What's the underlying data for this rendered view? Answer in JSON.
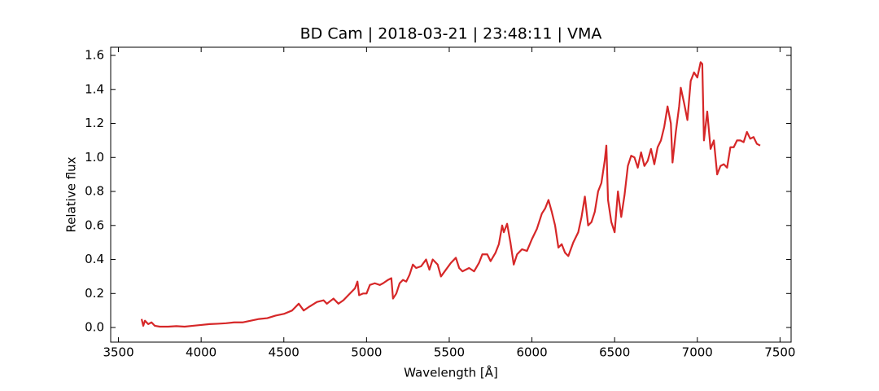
{
  "chart_data": {
    "type": "line",
    "title": "BD Cam | 2018-03-21 | 23:48:11 | VMA",
    "xlabel": "Wavelength [Å]",
    "ylabel": "Relative flux",
    "xlim": [
      3453,
      7567
    ],
    "ylim": [
      -0.086,
      1.648
    ],
    "xticks": [
      3500,
      4000,
      4500,
      5000,
      5500,
      6000,
      6500,
      7000,
      7500
    ],
    "yticks": [
      {
        "value": 0,
        "label": "0.0"
      },
      0.2,
      0.4,
      0.6,
      0.8,
      {
        "value": 1,
        "label": "1.0"
      },
      1.2,
      1.4,
      1.6
    ],
    "series": [
      {
        "color": "#d62728",
        "x": [
          3640,
          3650,
          3660,
          3680,
          3700,
          3720,
          3750,
          3800,
          3850,
          3900,
          3950,
          4000,
          4050,
          4100,
          4150,
          4200,
          4250,
          4300,
          4350,
          4400,
          4450,
          4500,
          4550,
          4590,
          4620,
          4650,
          4700,
          4740,
          4760,
          4800,
          4830,
          4860,
          4900,
          4930,
          4945,
          4955,
          4980,
          5000,
          5020,
          5050,
          5080,
          5100,
          5130,
          5150,
          5160,
          5180,
          5200,
          5220,
          5240,
          5260,
          5280,
          5300,
          5330,
          5360,
          5380,
          5400,
          5430,
          5450,
          5480,
          5510,
          5540,
          5560,
          5580,
          5620,
          5650,
          5680,
          5700,
          5730,
          5750,
          5780,
          5800,
          5820,
          5830,
          5850,
          5870,
          5890,
          5910,
          5940,
          5970,
          6000,
          6030,
          6060,
          6080,
          6100,
          6120,
          6140,
          6160,
          6180,
          6200,
          6220,
          6250,
          6280,
          6300,
          6320,
          6340,
          6360,
          6380,
          6400,
          6420,
          6440,
          6450,
          6460,
          6480,
          6500,
          6520,
          6540,
          6560,
          6580,
          6600,
          6620,
          6640,
          6660,
          6680,
          6700,
          6720,
          6740,
          6760,
          6780,
          6800,
          6820,
          6840,
          6850,
          6870,
          6890,
          6900,
          6920,
          6940,
          6960,
          6980,
          7000,
          7020,
          7030,
          7040,
          7060,
          7080,
          7100,
          7120,
          7140,
          7160,
          7180,
          7200,
          7220,
          7240,
          7260,
          7280,
          7300,
          7320,
          7340,
          7360,
          7380
        ],
        "values": [
          0.05,
          0.01,
          0.04,
          0.02,
          0.03,
          0.01,
          0.005,
          0.005,
          0.008,
          0.005,
          0.01,
          0.015,
          0.02,
          0.022,
          0.025,
          0.03,
          0.03,
          0.04,
          0.05,
          0.055,
          0.07,
          0.08,
          0.1,
          0.14,
          0.1,
          0.12,
          0.15,
          0.16,
          0.14,
          0.17,
          0.14,
          0.16,
          0.2,
          0.23,
          0.27,
          0.19,
          0.2,
          0.2,
          0.25,
          0.26,
          0.25,
          0.26,
          0.28,
          0.29,
          0.17,
          0.2,
          0.26,
          0.28,
          0.27,
          0.31,
          0.37,
          0.35,
          0.36,
          0.4,
          0.34,
          0.4,
          0.37,
          0.3,
          0.34,
          0.38,
          0.41,
          0.35,
          0.33,
          0.35,
          0.33,
          0.38,
          0.43,
          0.43,
          0.39,
          0.44,
          0.49,
          0.6,
          0.56,
          0.61,
          0.5,
          0.37,
          0.43,
          0.46,
          0.45,
          0.52,
          0.58,
          0.67,
          0.7,
          0.75,
          0.68,
          0.6,
          0.47,
          0.49,
          0.44,
          0.42,
          0.5,
          0.56,
          0.65,
          0.77,
          0.6,
          0.62,
          0.68,
          0.8,
          0.85,
          0.98,
          1.07,
          0.75,
          0.62,
          0.56,
          0.8,
          0.65,
          0.78,
          0.95,
          1.01,
          1.0,
          0.94,
          1.03,
          0.95,
          0.98,
          1.05,
          0.96,
          1.06,
          1.1,
          1.18,
          1.3,
          1.2,
          0.97,
          1.15,
          1.3,
          1.41,
          1.32,
          1.22,
          1.45,
          1.5,
          1.47,
          1.56,
          1.55,
          1.1,
          1.27,
          1.05,
          1.1,
          0.9,
          0.95,
          0.96,
          0.94,
          1.06,
          1.06,
          1.1,
          1.1,
          1.09,
          1.15,
          1.11,
          1.12,
          1.08,
          1.07
        ]
      }
    ]
  }
}
